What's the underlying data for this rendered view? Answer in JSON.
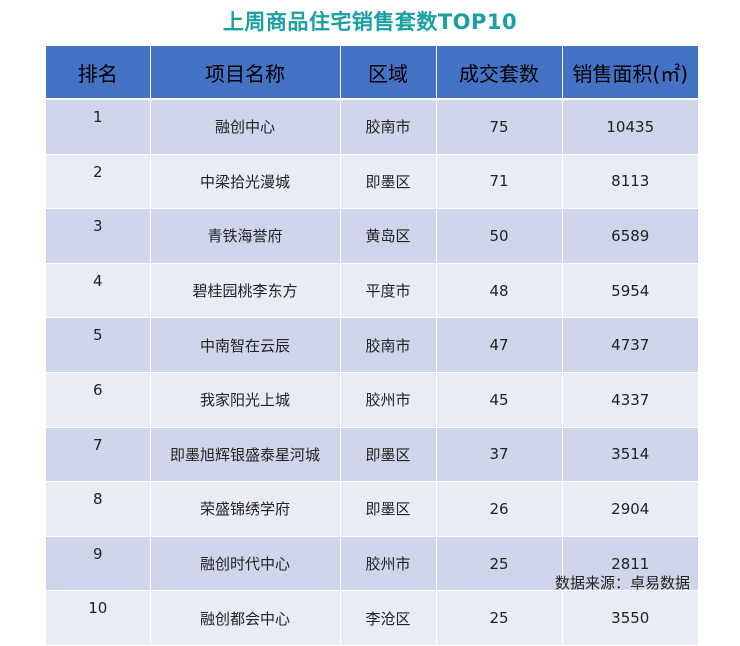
{
  "title": "上周商品住宅销售套数TOP10",
  "headers": {
    "rank": "排名",
    "project": "项目名称",
    "district": "区域",
    "units": "成交套数",
    "area": "销售面积(㎡)"
  },
  "rows": [
    {
      "rank": "1",
      "project": "融创中心",
      "district": "胶南市",
      "units": "75",
      "area": "10435"
    },
    {
      "rank": "2",
      "project": "中梁拾光漫城",
      "district": "即墨区",
      "units": "71",
      "area": "8113"
    },
    {
      "rank": "3",
      "project": "青铁海誉府",
      "district": "黄岛区",
      "units": "50",
      "area": "6589"
    },
    {
      "rank": "4",
      "project": "碧桂园桃李东方",
      "district": "平度市",
      "units": "48",
      "area": "5954"
    },
    {
      "rank": "5",
      "project": "中南智在云辰",
      "district": "胶南市",
      "units": "47",
      "area": "4737"
    },
    {
      "rank": "6",
      "project": "我家阳光上城",
      "district": "胶州市",
      "units": "45",
      "area": "4337"
    },
    {
      "rank": "7",
      "project": "即墨旭辉银盛泰星河城",
      "district": "即墨区",
      "units": "37",
      "area": "3514"
    },
    {
      "rank": "8",
      "project": "荣盛锦绣学府",
      "district": "即墨区",
      "units": "26",
      "area": "2904"
    },
    {
      "rank": "9",
      "project": "融创时代中心",
      "district": "胶州市",
      "units": "25",
      "area": "2811"
    },
    {
      "rank": "10",
      "project": "融创都会中心",
      "district": "李沧区",
      "units": "25",
      "area": "3550"
    }
  ],
  "source": "数据来源：卓易数据",
  "colors": {
    "title": "#1aa0a3",
    "header_bg": "#4472c4",
    "row_dark": "#cfd5ea",
    "row_light": "#e9ebf5"
  }
}
